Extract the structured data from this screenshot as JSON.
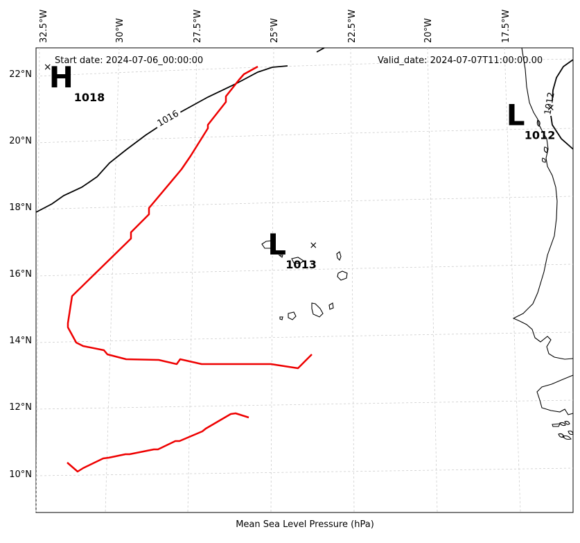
{
  "chart_data": {
    "type": "map",
    "header": {
      "start_date": "Start date: 2024-07-06_00:00:00",
      "valid_date": "Valid_date: 2024-07-07T11:00:00.00"
    },
    "xlabel": "Mean Sea Level Pressure (hPa)",
    "lon_ticks": [
      "32.5°W",
      "30°W",
      "27.5°W",
      "25°W",
      "22.5°W",
      "20°W",
      "17.5°W"
    ],
    "lat_ticks": [
      "22°N",
      "20°N",
      "18°N",
      "16°N",
      "14°N",
      "12°N",
      "10°N"
    ],
    "pressure_systems": [
      {
        "type": "H",
        "value": "1018",
        "lon": -32.2,
        "lat": 22.1
      },
      {
        "type": "L",
        "value": "1013",
        "lon": -23.8,
        "lat": 16.8
      },
      {
        "type": "L",
        "value": "1012",
        "lon": -16.3,
        "lat": 20.9
      }
    ],
    "isobar_labels": [
      "1016",
      "1012"
    ],
    "track_color": "#ee0000"
  }
}
